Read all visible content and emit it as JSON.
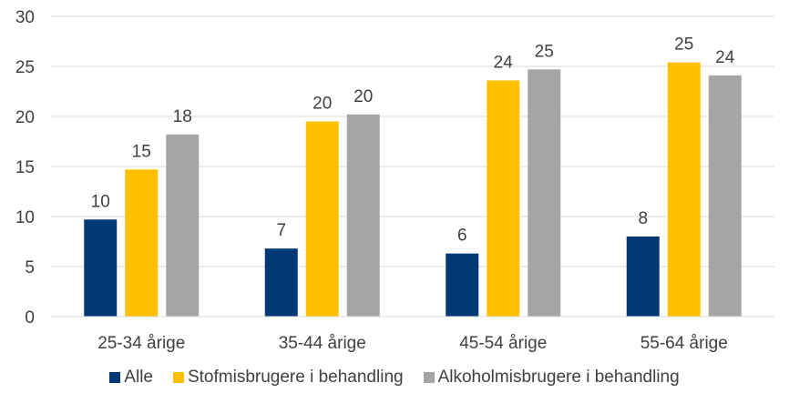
{
  "chart_data": {
    "type": "bar",
    "categories": [
      "25-34 årige",
      "35-44 årige",
      "45-54 årige",
      "55-64 årige"
    ],
    "series": [
      {
        "name": "Alle",
        "color": "#003876",
        "values": [
          9.7,
          6.8,
          6.3,
          8.0
        ],
        "labels": [
          "10",
          "7",
          "6",
          "8"
        ]
      },
      {
        "name": "Stofmisbrugere i behandling",
        "color": "#FFC000",
        "values": [
          14.7,
          19.5,
          23.6,
          25.4
        ],
        "labels": [
          "15",
          "20",
          "24",
          "25"
        ]
      },
      {
        "name": "Alkoholmisbrugere i behandling",
        "color": "#A5A5A5",
        "values": [
          18.2,
          20.2,
          24.7,
          24.1
        ],
        "labels": [
          "18",
          "20",
          "25",
          "24"
        ]
      }
    ],
    "ylim": [
      0,
      30
    ],
    "yticks": [
      0,
      5,
      10,
      15,
      20,
      25,
      30
    ],
    "grid": true,
    "legend_position": "bottom"
  }
}
